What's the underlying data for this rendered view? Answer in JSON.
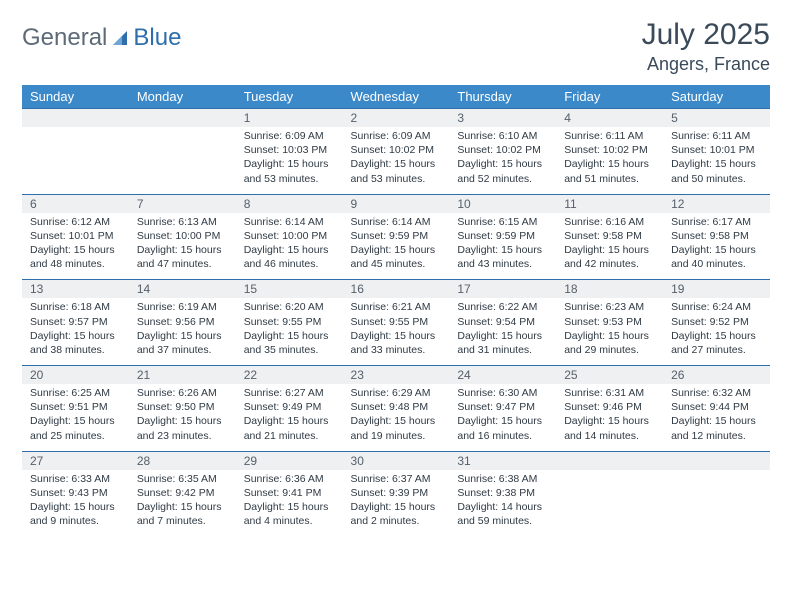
{
  "brand": {
    "part1": "General",
    "part2": "Blue"
  },
  "colors": {
    "header_bg": "#3b89c9",
    "header_text": "#ffffff",
    "strip_bg": "#eef0f2",
    "strip_text": "#56606b",
    "rule": "#2e6eab",
    "title": "#3a4a5a",
    "body_text": "#2f3a44",
    "logo_gray": "#5d6a78",
    "logo_blue": "#2e6eab"
  },
  "title": "July 2025",
  "location": "Angers, France",
  "weekdays": [
    "Sunday",
    "Monday",
    "Tuesday",
    "Wednesday",
    "Thursday",
    "Friday",
    "Saturday"
  ],
  "weeks": [
    [
      null,
      null,
      {
        "d": "1",
        "sr": "6:09 AM",
        "ss": "10:03 PM",
        "dl": "15 hours and 53 minutes."
      },
      {
        "d": "2",
        "sr": "6:09 AM",
        "ss": "10:02 PM",
        "dl": "15 hours and 53 minutes."
      },
      {
        "d": "3",
        "sr": "6:10 AM",
        "ss": "10:02 PM",
        "dl": "15 hours and 52 minutes."
      },
      {
        "d": "4",
        "sr": "6:11 AM",
        "ss": "10:02 PM",
        "dl": "15 hours and 51 minutes."
      },
      {
        "d": "5",
        "sr": "6:11 AM",
        "ss": "10:01 PM",
        "dl": "15 hours and 50 minutes."
      }
    ],
    [
      {
        "d": "6",
        "sr": "6:12 AM",
        "ss": "10:01 PM",
        "dl": "15 hours and 48 minutes."
      },
      {
        "d": "7",
        "sr": "6:13 AM",
        "ss": "10:00 PM",
        "dl": "15 hours and 47 minutes."
      },
      {
        "d": "8",
        "sr": "6:14 AM",
        "ss": "10:00 PM",
        "dl": "15 hours and 46 minutes."
      },
      {
        "d": "9",
        "sr": "6:14 AM",
        "ss": "9:59 PM",
        "dl": "15 hours and 45 minutes."
      },
      {
        "d": "10",
        "sr": "6:15 AM",
        "ss": "9:59 PM",
        "dl": "15 hours and 43 minutes."
      },
      {
        "d": "11",
        "sr": "6:16 AM",
        "ss": "9:58 PM",
        "dl": "15 hours and 42 minutes."
      },
      {
        "d": "12",
        "sr": "6:17 AM",
        "ss": "9:58 PM",
        "dl": "15 hours and 40 minutes."
      }
    ],
    [
      {
        "d": "13",
        "sr": "6:18 AM",
        "ss": "9:57 PM",
        "dl": "15 hours and 38 minutes."
      },
      {
        "d": "14",
        "sr": "6:19 AM",
        "ss": "9:56 PM",
        "dl": "15 hours and 37 minutes."
      },
      {
        "d": "15",
        "sr": "6:20 AM",
        "ss": "9:55 PM",
        "dl": "15 hours and 35 minutes."
      },
      {
        "d": "16",
        "sr": "6:21 AM",
        "ss": "9:55 PM",
        "dl": "15 hours and 33 minutes."
      },
      {
        "d": "17",
        "sr": "6:22 AM",
        "ss": "9:54 PM",
        "dl": "15 hours and 31 minutes."
      },
      {
        "d": "18",
        "sr": "6:23 AM",
        "ss": "9:53 PM",
        "dl": "15 hours and 29 minutes."
      },
      {
        "d": "19",
        "sr": "6:24 AM",
        "ss": "9:52 PM",
        "dl": "15 hours and 27 minutes."
      }
    ],
    [
      {
        "d": "20",
        "sr": "6:25 AM",
        "ss": "9:51 PM",
        "dl": "15 hours and 25 minutes."
      },
      {
        "d": "21",
        "sr": "6:26 AM",
        "ss": "9:50 PM",
        "dl": "15 hours and 23 minutes."
      },
      {
        "d": "22",
        "sr": "6:27 AM",
        "ss": "9:49 PM",
        "dl": "15 hours and 21 minutes."
      },
      {
        "d": "23",
        "sr": "6:29 AM",
        "ss": "9:48 PM",
        "dl": "15 hours and 19 minutes."
      },
      {
        "d": "24",
        "sr": "6:30 AM",
        "ss": "9:47 PM",
        "dl": "15 hours and 16 minutes."
      },
      {
        "d": "25",
        "sr": "6:31 AM",
        "ss": "9:46 PM",
        "dl": "15 hours and 14 minutes."
      },
      {
        "d": "26",
        "sr": "6:32 AM",
        "ss": "9:44 PM",
        "dl": "15 hours and 12 minutes."
      }
    ],
    [
      {
        "d": "27",
        "sr": "6:33 AM",
        "ss": "9:43 PM",
        "dl": "15 hours and 9 minutes."
      },
      {
        "d": "28",
        "sr": "6:35 AM",
        "ss": "9:42 PM",
        "dl": "15 hours and 7 minutes."
      },
      {
        "d": "29",
        "sr": "6:36 AM",
        "ss": "9:41 PM",
        "dl": "15 hours and 4 minutes."
      },
      {
        "d": "30",
        "sr": "6:37 AM",
        "ss": "9:39 PM",
        "dl": "15 hours and 2 minutes."
      },
      {
        "d": "31",
        "sr": "6:38 AM",
        "ss": "9:38 PM",
        "dl": "14 hours and 59 minutes."
      },
      null,
      null
    ]
  ],
  "labels": {
    "sunrise": "Sunrise:",
    "sunset": "Sunset:",
    "daylight": "Daylight:"
  }
}
